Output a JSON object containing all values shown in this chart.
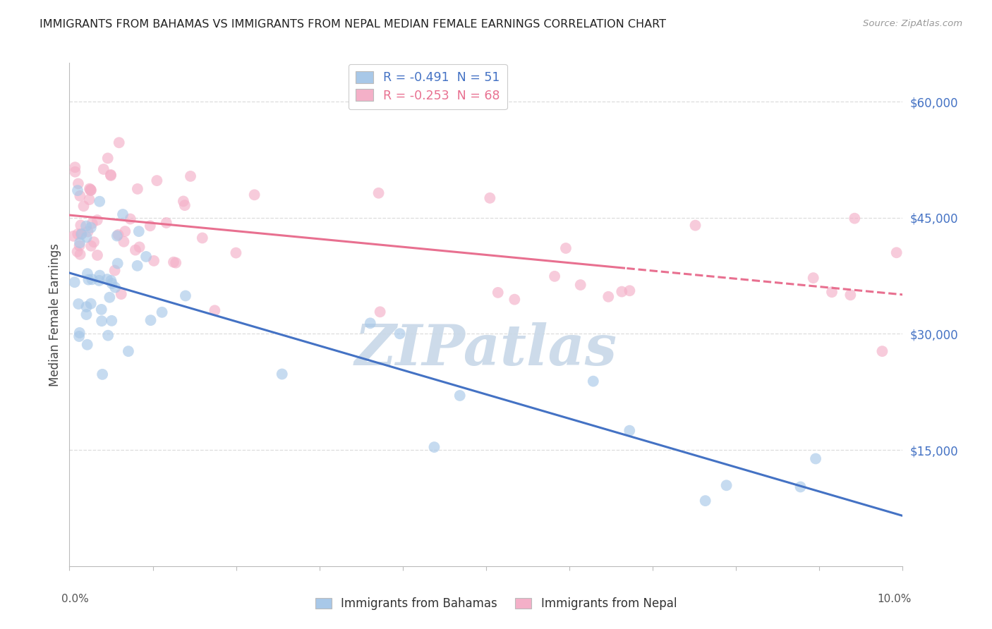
{
  "title": "IMMIGRANTS FROM BAHAMAS VS IMMIGRANTS FROM NEPAL MEDIAN FEMALE EARNINGS CORRELATION CHART",
  "source": "Source: ZipAtlas.com",
  "ylabel": "Median Female Earnings",
  "xlim": [
    0.0,
    10.0
  ],
  "ylim": [
    0,
    65000
  ],
  "legend_bahamas": "R = -0.491  N = 51",
  "legend_nepal": "R = -0.253  N = 68",
  "legend_label_bahamas": "Immigrants from Bahamas",
  "legend_label_nepal": "Immigrants from Nepal",
  "color_bahamas": "#a8c8e8",
  "color_nepal": "#f4b0c8",
  "line_color_bahamas": "#4472c4",
  "line_color_nepal": "#e87090",
  "watermark_color": "#c8d8e8",
  "bah_intercept": 38000,
  "bah_slope": -2600,
  "bah_noise": 6000,
  "nep_intercept": 44000,
  "nep_slope": -800,
  "nep_noise": 5000,
  "ytick_positions": [
    15000,
    30000,
    45000,
    60000
  ],
  "ytick_labels": [
    "$15,000",
    "$30,000",
    "$45,000",
    "$60,000"
  ],
  "grid_color": "#dddddd",
  "spine_color": "#bbbbbb"
}
